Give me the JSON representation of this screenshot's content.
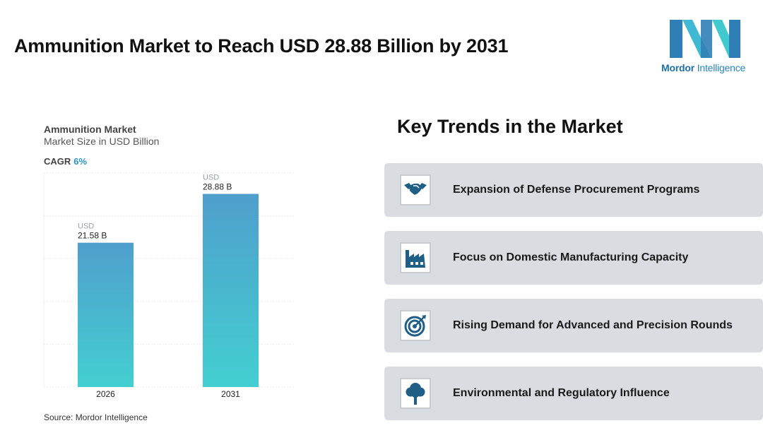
{
  "header": {
    "title": "Ammunition Market to Reach USD 28.88 Billion by 2031"
  },
  "logo": {
    "brand_bold": "Mordor",
    "brand_rest": "Intelligence"
  },
  "chart_info": {
    "title": "Ammunition Market",
    "subtitle": "Market Size in USD Billion",
    "cagr_label": "CAGR",
    "cagr_value": "6%"
  },
  "chart_data": {
    "type": "bar",
    "title": "Ammunition Market",
    "subtitle": "Market Size in USD Billion",
    "categories": [
      "2026",
      "2031"
    ],
    "values": [
      21.58,
      28.88
    ],
    "value_prefix_labels": [
      "USD",
      "USD"
    ],
    "value_labels": [
      "21.58 B",
      "28.88 B"
    ],
    "ylim": [
      0,
      32
    ],
    "grid": true,
    "colors": {
      "bar_top": "#4f9fcd",
      "bar_bottom": "#43cfd0"
    }
  },
  "source": "Source: Mordor Intelligence",
  "trends": {
    "title": "Key Trends in the Market",
    "items": [
      {
        "label": "Expansion of Defense Procurement Programs",
        "icon": "handshake-icon"
      },
      {
        "label": "Focus on Domestic Manufacturing Capacity",
        "icon": "factory-icon"
      },
      {
        "label": "Rising Demand for Advanced and Precision Rounds",
        "icon": "target-icon"
      },
      {
        "label": "Environmental and Regulatory Influence",
        "icon": "tree-icon"
      }
    ]
  },
  "colors": {
    "icon": "#1f5f86",
    "card_bg": "#d9dde2",
    "accent": "#2a95c6"
  }
}
